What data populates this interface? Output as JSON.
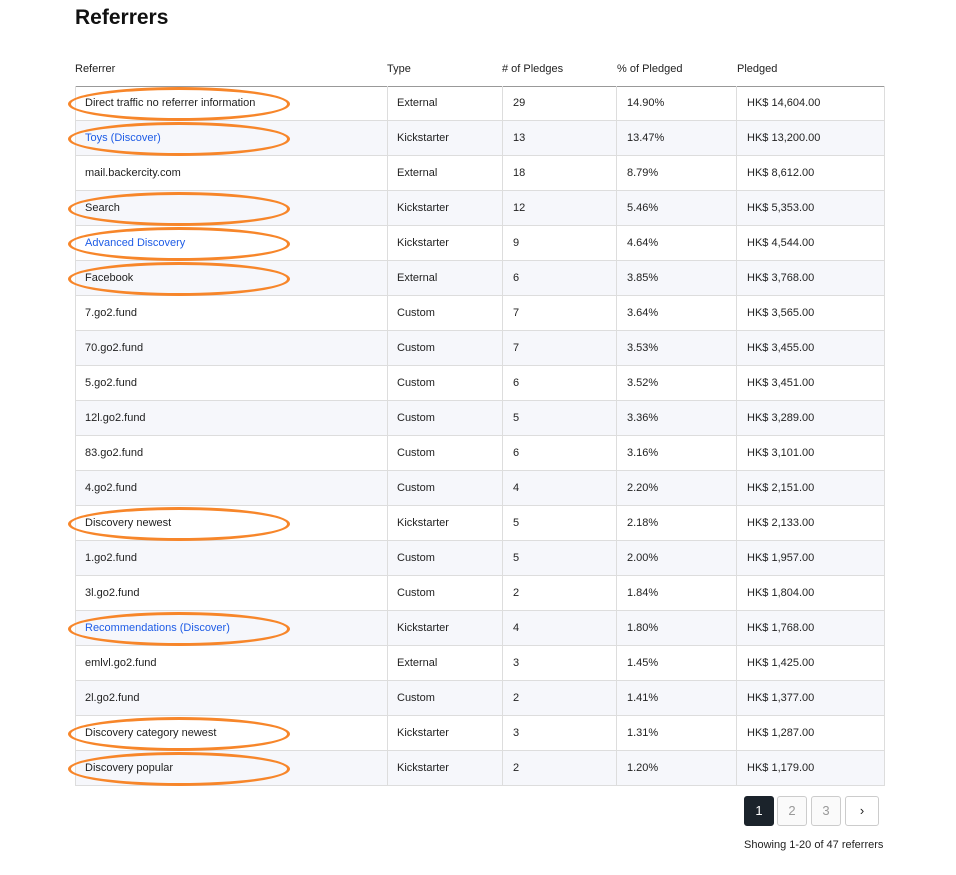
{
  "title": "Referrers",
  "columns": [
    "Referrer",
    "Type",
    "# of Pledges",
    "% of Pledged",
    "Pledged"
  ],
  "highlight_color": "#f7862a",
  "rows": [
    {
      "referrer": "Direct traffic no referrer information",
      "type": "External",
      "pledges": "29",
      "pct": "14.90%",
      "pledged": "HK$ 14,604.00",
      "link": false,
      "highlighted": true
    },
    {
      "referrer": "Toys (Discover)",
      "type": "Kickstarter",
      "pledges": "13",
      "pct": "13.47%",
      "pledged": "HK$ 13,200.00",
      "link": true,
      "highlighted": true
    },
    {
      "referrer": "mail.backercity.com",
      "type": "External",
      "pledges": "18",
      "pct": "8.79%",
      "pledged": "HK$ 8,612.00",
      "link": false,
      "highlighted": false
    },
    {
      "referrer": "Search",
      "type": "Kickstarter",
      "pledges": "12",
      "pct": "5.46%",
      "pledged": "HK$ 5,353.00",
      "link": false,
      "highlighted": true
    },
    {
      "referrer": "Advanced Discovery",
      "type": "Kickstarter",
      "pledges": "9",
      "pct": "4.64%",
      "pledged": "HK$ 4,544.00",
      "link": true,
      "highlighted": true
    },
    {
      "referrer": "Facebook",
      "type": "External",
      "pledges": "6",
      "pct": "3.85%",
      "pledged": "HK$ 3,768.00",
      "link": false,
      "highlighted": true
    },
    {
      "referrer": "7.go2.fund",
      "type": "Custom",
      "pledges": "7",
      "pct": "3.64%",
      "pledged": "HK$ 3,565.00",
      "link": false,
      "highlighted": false
    },
    {
      "referrer": "70.go2.fund",
      "type": "Custom",
      "pledges": "7",
      "pct": "3.53%",
      "pledged": "HK$ 3,455.00",
      "link": false,
      "highlighted": false
    },
    {
      "referrer": "5.go2.fund",
      "type": "Custom",
      "pledges": "6",
      "pct": "3.52%",
      "pledged": "HK$ 3,451.00",
      "link": false,
      "highlighted": false
    },
    {
      "referrer": "12l.go2.fund",
      "type": "Custom",
      "pledges": "5",
      "pct": "3.36%",
      "pledged": "HK$ 3,289.00",
      "link": false,
      "highlighted": false
    },
    {
      "referrer": "83.go2.fund",
      "type": "Custom",
      "pledges": "6",
      "pct": "3.16%",
      "pledged": "HK$ 3,101.00",
      "link": false,
      "highlighted": false
    },
    {
      "referrer": "4.go2.fund",
      "type": "Custom",
      "pledges": "4",
      "pct": "2.20%",
      "pledged": "HK$ 2,151.00",
      "link": false,
      "highlighted": false
    },
    {
      "referrer": "Discovery newest",
      "type": "Kickstarter",
      "pledges": "5",
      "pct": "2.18%",
      "pledged": "HK$ 2,133.00",
      "link": false,
      "highlighted": true
    },
    {
      "referrer": "1.go2.fund",
      "type": "Custom",
      "pledges": "5",
      "pct": "2.00%",
      "pledged": "HK$ 1,957.00",
      "link": false,
      "highlighted": false
    },
    {
      "referrer": "3l.go2.fund",
      "type": "Custom",
      "pledges": "2",
      "pct": "1.84%",
      "pledged": "HK$ 1,804.00",
      "link": false,
      "highlighted": false
    },
    {
      "referrer": "Recommendations (Discover)",
      "type": "Kickstarter",
      "pledges": "4",
      "pct": "1.80%",
      "pledged": "HK$ 1,768.00",
      "link": true,
      "highlighted": true
    },
    {
      "referrer": "emlvl.go2.fund",
      "type": "External",
      "pledges": "3",
      "pct": "1.45%",
      "pledged": "HK$ 1,425.00",
      "link": false,
      "highlighted": false
    },
    {
      "referrer": "2l.go2.fund",
      "type": "Custom",
      "pledges": "2",
      "pct": "1.41%",
      "pledged": "HK$ 1,377.00",
      "link": false,
      "highlighted": false
    },
    {
      "referrer": "Discovery category newest",
      "type": "Kickstarter",
      "pledges": "3",
      "pct": "1.31%",
      "pledged": "HK$ 1,287.00",
      "link": false,
      "highlighted": true
    },
    {
      "referrer": "Discovery popular",
      "type": "Kickstarter",
      "pledges": "2",
      "pct": "1.20%",
      "pledged": "HK$ 1,179.00",
      "link": false,
      "highlighted": true
    }
  ],
  "pagination": {
    "pages": [
      "1",
      "2",
      "3"
    ],
    "current": "1",
    "next": "›"
  },
  "showing": "Showing 1-20 of 47 referrers"
}
